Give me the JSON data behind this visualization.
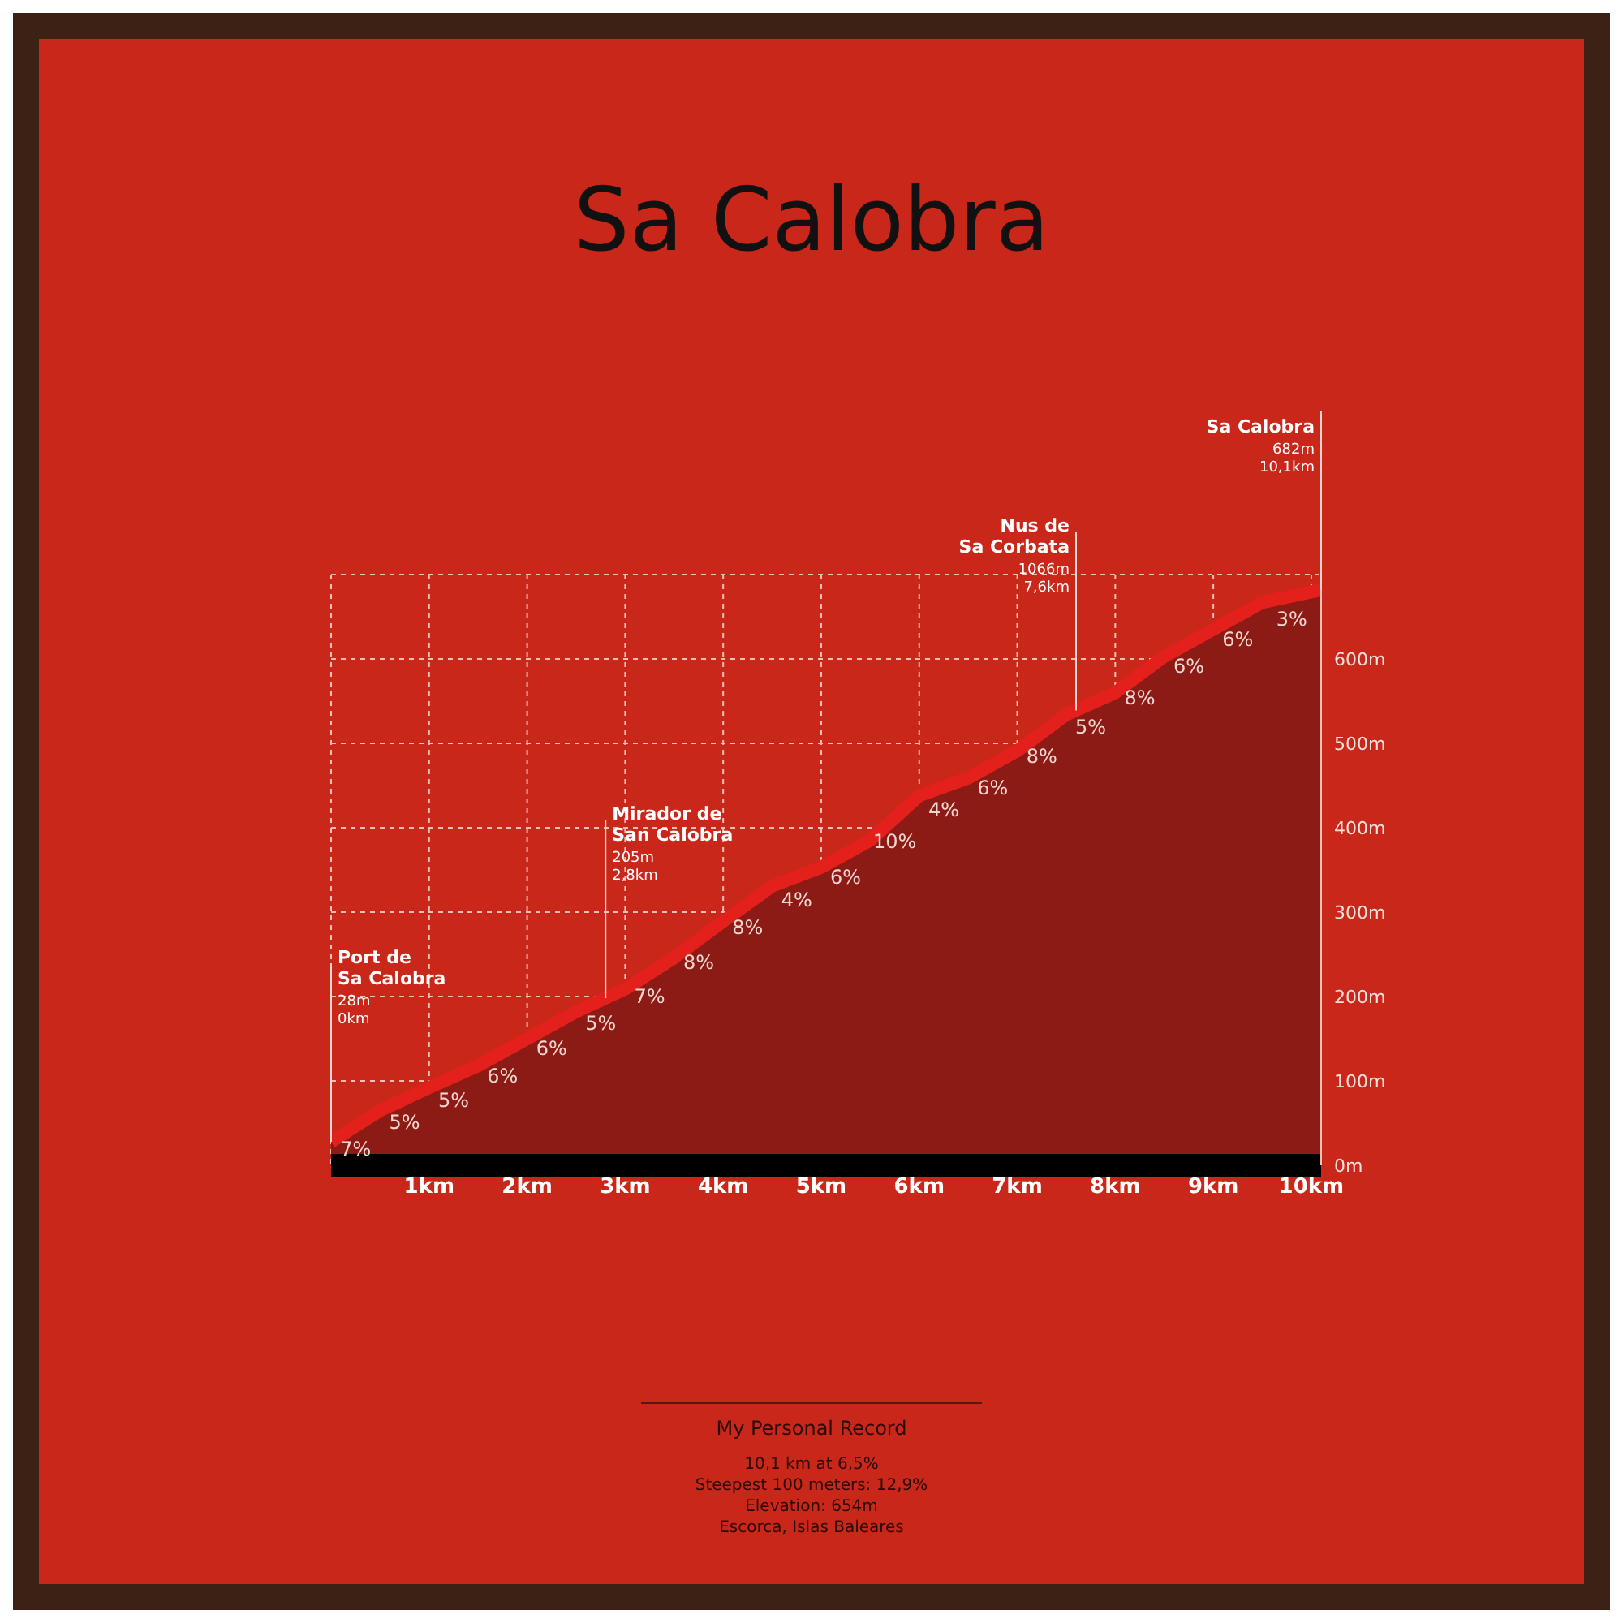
{
  "chart_data": {
    "type": "area",
    "title": "Sa Calobra",
    "x": [
      0,
      0.5,
      1,
      1.5,
      2,
      2.5,
      3,
      3.5,
      4,
      4.5,
      5,
      5.5,
      6,
      6.5,
      7,
      7.5,
      8,
      8.5,
      9,
      9.5,
      10.1
    ],
    "series": [
      {
        "color": "#e4201c",
        "values": [
          28,
          65,
          92,
          118,
          150,
          182,
          209,
          246,
          289,
          331,
          353,
          385,
          438,
          459,
          491,
          534,
          560,
          603,
          635,
          667,
          682
        ]
      }
    ],
    "xlim": [
      0,
      10.1
    ],
    "xticks": [
      {
        "value": 1,
        "label": "1km"
      },
      {
        "value": 2,
        "label": "2km"
      },
      {
        "value": 3,
        "label": "3km"
      },
      {
        "value": 4,
        "label": "4km"
      },
      {
        "value": 5,
        "label": "5km"
      },
      {
        "value": 6,
        "label": "6km"
      },
      {
        "value": 7,
        "label": "7km"
      },
      {
        "value": 8,
        "label": "8km"
      },
      {
        "value": 9,
        "label": "9km"
      },
      {
        "value": 10,
        "label": "10km"
      }
    ],
    "ylim": [
      0,
      700
    ],
    "yticks": [
      {
        "value": 0,
        "label": "0m"
      },
      {
        "value": 100,
        "label": "100m"
      },
      {
        "value": 200,
        "label": "200m"
      },
      {
        "value": 300,
        "label": "300m"
      },
      {
        "value": 400,
        "label": "400m"
      },
      {
        "value": 500,
        "label": "500m"
      },
      {
        "value": 600,
        "label": "600m"
      }
    ],
    "grid": true,
    "marker": "none",
    "legend": false,
    "annotations": [
      "My Personal Record",
      "10,1 km at 6,5%",
      "Steepest 100 meters: 12,9%",
      "Elevation: 654m",
      "Escorca, Islas Baleares",
      {
        "text": "Port de Sa Calobra",
        "x": 0,
        "y": 28
      },
      "28m",
      "0km",
      {
        "text": "Mirador de San Calobra",
        "x": 2.8,
        "y": 198
      },
      "205m",
      "2,8km",
      {
        "text": "Nus de Sa Corbata",
        "x": 7.6,
        "y": 539
      },
      "1066m",
      "7,6km",
      {
        "text": "Sa Calobra",
        "x": 10.1,
        "y": 682
      },
      "682m",
      "10,1km",
      {
        "text": "7%",
        "x": 0.25,
        "y": 47
      },
      {
        "text": "5%",
        "x": 0.75,
        "y": 79
      },
      {
        "text": "5%",
        "x": 1.25,
        "y": 105
      },
      {
        "text": "6%",
        "x": 1.75,
        "y": 134
      },
      {
        "text": "6%",
        "x": 2.25,
        "y": 166
      },
      {
        "text": "5%",
        "x": 2.75,
        "y": 196
      },
      {
        "text": "7%",
        "x": 3.25,
        "y": 228
      },
      {
        "text": "8%",
        "x": 3.75,
        "y": 268
      },
      {
        "text": "8%",
        "x": 4.25,
        "y": 310
      },
      {
        "text": "4%",
        "x": 4.75,
        "y": 342
      },
      {
        "text": "6%",
        "x": 5.25,
        "y": 369
      },
      {
        "text": "10%",
        "x": 5.75,
        "y": 412
      },
      {
        "text": "4%",
        "x": 6.25,
        "y": 449
      },
      {
        "text": "6%",
        "x": 6.75,
        "y": 475
      },
      {
        "text": "8%",
        "x": 7.25,
        "y": 513
      },
      {
        "text": "5%",
        "x": 7.75,
        "y": 547
      },
      {
        "text": "8%",
        "x": 8.25,
        "y": 582
      },
      {
        "text": "6%",
        "x": 8.75,
        "y": 619
      },
      {
        "text": "6%",
        "x": 9.25,
        "y": 651
      },
      {
        "text": "3%",
        "x": 9.8,
        "y": 675
      }
    ]
  }
}
